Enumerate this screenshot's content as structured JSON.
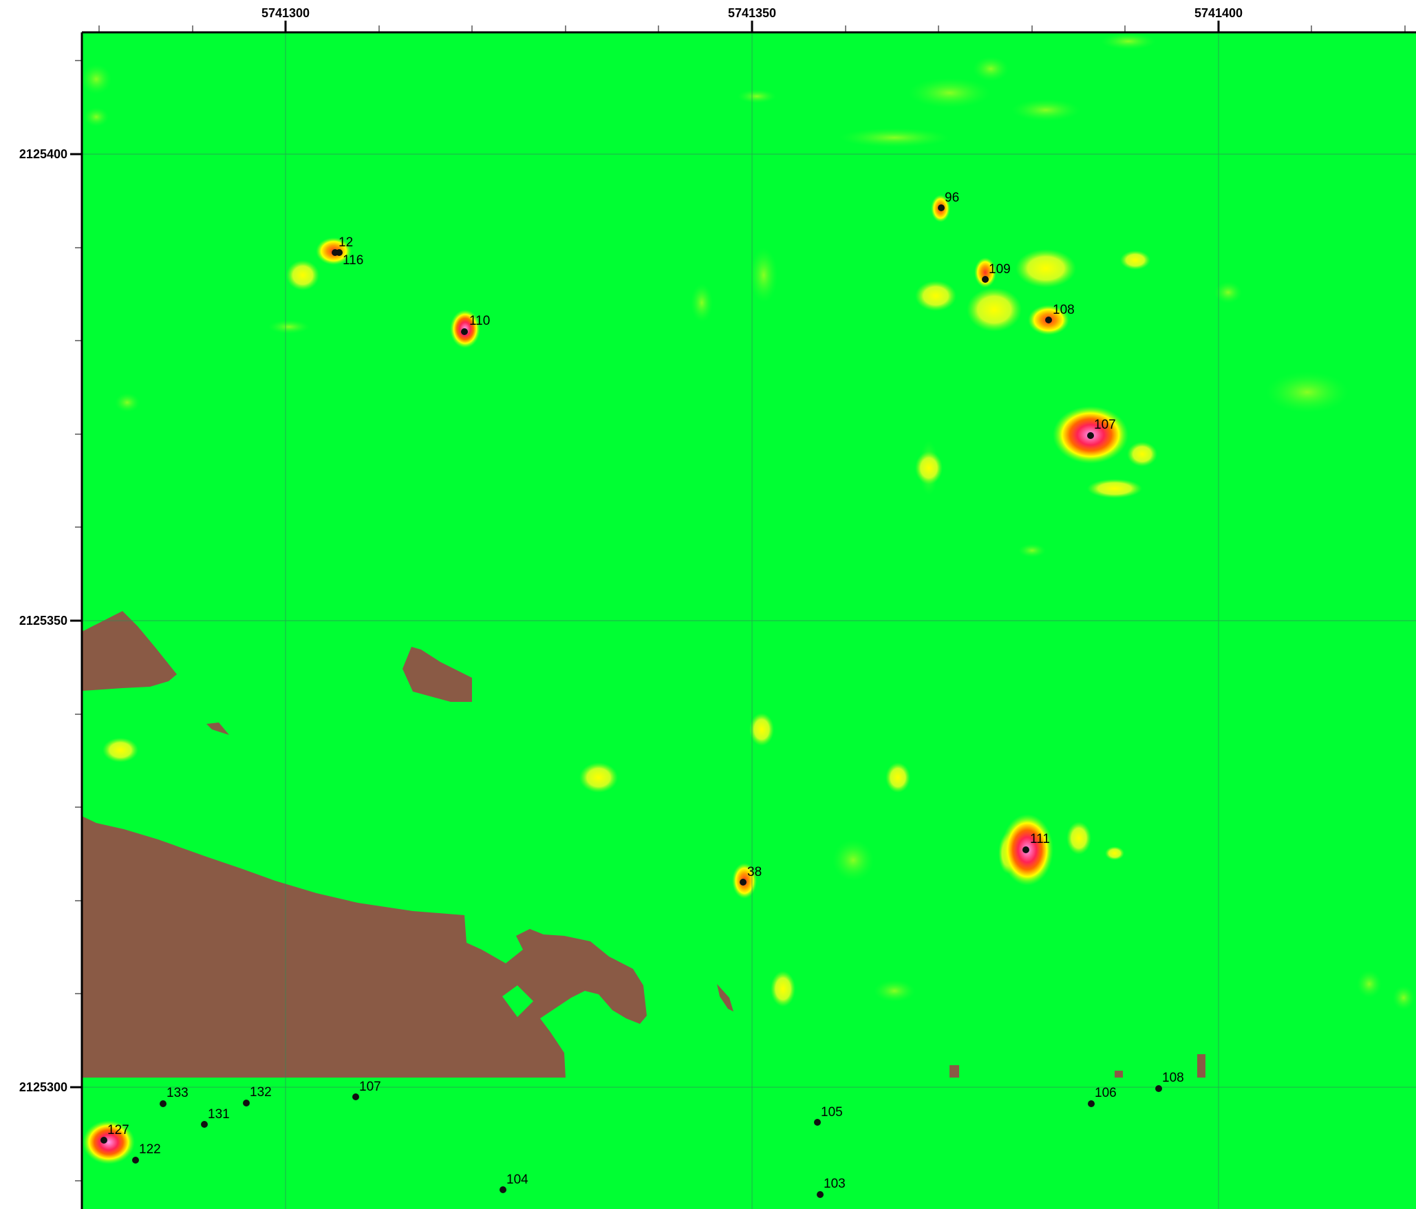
{
  "map": {
    "x_axis_labels": [
      "5741300",
      "5741350",
      "5741400"
    ],
    "y_axis_labels": [
      "2125400",
      "2125350",
      "2125300"
    ],
    "colors": {
      "background_field": "#00ff33",
      "low_anomaly": "#66ff22",
      "medium_anomaly": "#ffff00",
      "high_anomaly": "#ff3322",
      "peak_anomaly": "#ff99ee",
      "bare_ground": "#8a5a45",
      "grid_line": "#2e8b57",
      "frame": "#000000"
    },
    "points": [
      {
        "label": "12"
      },
      {
        "label": "116"
      },
      {
        "label": "110"
      },
      {
        "label": "96"
      },
      {
        "label": "109"
      },
      {
        "label": "108"
      },
      {
        "label": "107"
      },
      {
        "label": "111"
      },
      {
        "label": "38"
      },
      {
        "label": "133"
      },
      {
        "label": "132"
      },
      {
        "label": "107"
      },
      {
        "label": "131"
      },
      {
        "label": "127"
      },
      {
        "label": "122"
      },
      {
        "label": "104"
      },
      {
        "label": "105"
      },
      {
        "label": "103"
      },
      {
        "label": "106"
      },
      {
        "label": "108"
      }
    ]
  }
}
